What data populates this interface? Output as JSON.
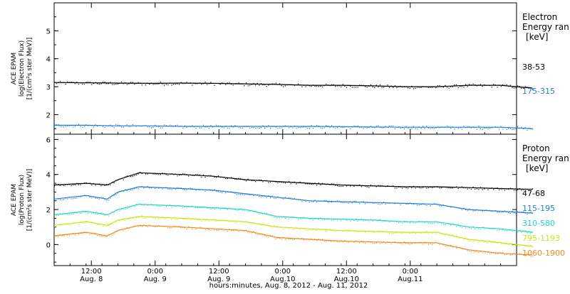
{
  "chart_data": [
    {
      "type": "scatter",
      "instrument": "ACE EPAM",
      "ylabel": "log(Electron Flux)",
      "yunit": "[1/(cm²s ster MeV)]",
      "ylim": [
        1.3,
        6.0
      ],
      "yticks": [
        2,
        3,
        4,
        5
      ],
      "legend_title": [
        "Electron",
        "Energy ran"
      ],
      "legend_unit": "[keV]",
      "series": [
        {
          "name": "38-53",
          "color": "#000000",
          "x": [
            0,
            6,
            12,
            18,
            24,
            30,
            36,
            42,
            48,
            54,
            60,
            66,
            72,
            78,
            84,
            90
          ],
          "values": [
            3.15,
            3.14,
            3.13,
            3.12,
            3.13,
            3.12,
            3.1,
            3.08,
            3.05,
            3.05,
            3.03,
            3.0,
            3.0,
            3.05,
            3.05,
            2.95
          ]
        },
        {
          "name": "175-315",
          "color": "#1f7fd6",
          "x": [
            0,
            6,
            12,
            18,
            24,
            30,
            36,
            42,
            48,
            54,
            60,
            66,
            72,
            78,
            84,
            90
          ],
          "values": [
            1.62,
            1.62,
            1.6,
            1.6,
            1.58,
            1.58,
            1.58,
            1.58,
            1.58,
            1.57,
            1.56,
            1.55,
            1.55,
            1.55,
            1.55,
            1.5
          ]
        }
      ]
    },
    {
      "type": "scatter",
      "instrument": "ACE EPAM",
      "ylabel": "log(Proton Flux)",
      "yunit": "[1/(cm²s ster MeV)]",
      "ylim": [
        -1.2,
        6.3
      ],
      "yticks": [
        0,
        2,
        4,
        6
      ],
      "legend_title": [
        "Proton",
        "Energy ran"
      ],
      "legend_unit": "[keV]",
      "series": [
        {
          "name": "47-68",
          "color": "#000000",
          "x": [
            0,
            6,
            10,
            12,
            16,
            24,
            30,
            36,
            42,
            48,
            54,
            60,
            66,
            72,
            78,
            84,
            90
          ],
          "values": [
            3.4,
            3.5,
            3.4,
            3.7,
            4.1,
            4.0,
            3.9,
            3.7,
            3.6,
            3.5,
            3.4,
            3.35,
            3.3,
            3.3,
            3.25,
            3.2,
            3.15
          ]
        },
        {
          "name": "115-195",
          "color": "#1f7fd6",
          "x": [
            0,
            6,
            10,
            12,
            16,
            24,
            30,
            36,
            42,
            48,
            54,
            60,
            66,
            72,
            78,
            84,
            90
          ],
          "values": [
            2.6,
            2.8,
            2.6,
            3.0,
            3.3,
            3.2,
            3.1,
            2.9,
            2.7,
            2.5,
            2.45,
            2.4,
            2.35,
            2.3,
            2.0,
            1.9,
            1.8
          ]
        },
        {
          "name": "310-580",
          "color": "#22d6c4",
          "x": [
            0,
            6,
            10,
            12,
            16,
            24,
            30,
            36,
            42,
            48,
            54,
            60,
            66,
            72,
            78,
            84,
            90
          ],
          "values": [
            1.7,
            1.9,
            1.7,
            2.0,
            2.3,
            2.2,
            2.1,
            2.0,
            1.6,
            1.5,
            1.45,
            1.4,
            1.3,
            1.3,
            1.0,
            0.9,
            0.7
          ]
        },
        {
          "name": "795-1193",
          "color": "#c8e614",
          "x": [
            0,
            6,
            10,
            12,
            16,
            24,
            30,
            36,
            42,
            48,
            54,
            60,
            66,
            72,
            78,
            84,
            90
          ],
          "values": [
            1.1,
            1.3,
            1.1,
            1.4,
            1.6,
            1.5,
            1.4,
            1.3,
            1.0,
            0.9,
            0.8,
            0.75,
            0.7,
            0.7,
            0.3,
            0.1,
            -0.1
          ]
        },
        {
          "name": "1060-1900",
          "color": "#f08a1e",
          "x": [
            0,
            6,
            10,
            12,
            16,
            24,
            30,
            36,
            42,
            48,
            54,
            60,
            66,
            72,
            78,
            84,
            90
          ],
          "values": [
            0.5,
            0.7,
            0.5,
            0.8,
            1.1,
            1.0,
            0.9,
            0.8,
            0.4,
            0.3,
            0.2,
            0.15,
            0.1,
            0.1,
            -0.3,
            -0.5,
            -0.6
          ]
        }
      ]
    }
  ],
  "xaxis": {
    "range": [
      "2012-08-08 05:00",
      "2012-08-11 20:00"
    ],
    "ticks": [
      {
        "t": "2012-08-08 12:00",
        "top": "12:00",
        "bottom": "Aug. 8"
      },
      {
        "t": "2012-08-09 00:00",
        "top": "0:00",
        "bottom": "Aug. 9"
      },
      {
        "t": "2012-08-09 12:00",
        "top": "12:00",
        "bottom": "Aug. 9"
      },
      {
        "t": "2012-08-10 00:00",
        "top": "0:00",
        "bottom": "Aug.10"
      },
      {
        "t": "2012-08-10 12:00",
        "top": "12:00",
        "bottom": "Aug.10"
      },
      {
        "t": "2012-08-11 00:00",
        "top": "0:00",
        "bottom": "Aug.11"
      }
    ],
    "label": "hours:minutes, Aug.  8, 2012 - Aug. 11, 2012"
  }
}
